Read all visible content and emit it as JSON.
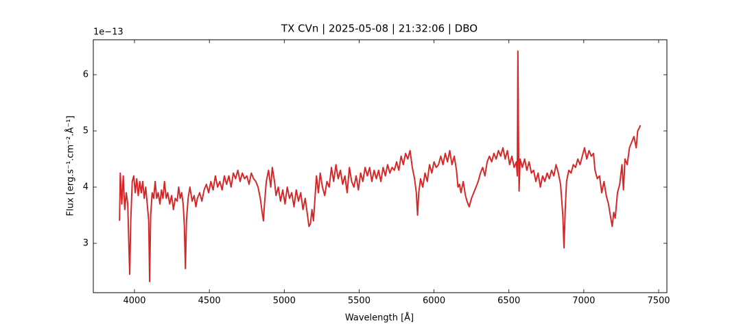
{
  "chart_data": {
    "type": "line",
    "title": "TX CVn | 2025-05-08 | 21:32:06 | DBO",
    "xlabel": "Wavelength [Å]",
    "ylabel": "Flux [erg.s⁻¹.cm⁻².Å⁻¹]",
    "y_offset_label": "1e−13",
    "xlim": [
      3725,
      7555
    ],
    "ylim": [
      2.122,
      6.622
    ],
    "xticks": [
      4000,
      4500,
      5000,
      5500,
      6000,
      6500,
      7000,
      7500
    ],
    "yticks": [
      3,
      4,
      5,
      6
    ],
    "series": [
      {
        "name": "TX CVn",
        "color": "#d62728",
        "x": [
          3900,
          3905,
          3915,
          3925,
          3935,
          3945,
          3955,
          3962,
          3968,
          3975,
          3985,
          3995,
          4005,
          4015,
          4025,
          4035,
          4045,
          4055,
          4065,
          4075,
          4085,
          4095,
          4101,
          4108,
          4118,
          4128,
          4138,
          4148,
          4158,
          4170,
          4180,
          4190,
          4200,
          4212,
          4222,
          4235,
          4248,
          4260,
          4272,
          4285,
          4295,
          4305,
          4315,
          4325,
          4333,
          4340,
          4347,
          4358,
          4370,
          4385,
          4398,
          4410,
          4420,
          4435,
          4450,
          4465,
          4480,
          4495,
          4510,
          4525,
          4540,
          4555,
          4570,
          4585,
          4600,
          4615,
          4630,
          4645,
          4660,
          4675,
          4690,
          4705,
          4720,
          4735,
          4750,
          4765,
          4780,
          4795,
          4810,
          4825,
          4840,
          4855,
          4861,
          4868,
          4880,
          4895,
          4910,
          4920,
          4935,
          4945,
          4960,
          4975,
          4990,
          5005,
          5020,
          5035,
          5050,
          5065,
          5080,
          5095,
          5110,
          5125,
          5140,
          5155,
          5165,
          5175,
          5185,
          5195,
          5205,
          5215,
          5228,
          5240,
          5255,
          5270,
          5285,
          5300,
          5315,
          5330,
          5345,
          5360,
          5375,
          5390,
          5405,
          5420,
          5435,
          5450,
          5465,
          5480,
          5495,
          5510,
          5525,
          5540,
          5555,
          5570,
          5585,
          5600,
          5615,
          5630,
          5645,
          5660,
          5675,
          5690,
          5705,
          5720,
          5735,
          5750,
          5765,
          5780,
          5795,
          5810,
          5825,
          5840,
          5855,
          5870,
          5882,
          5890,
          5898,
          5910,
          5925,
          5940,
          5955,
          5970,
          5985,
          6000,
          6015,
          6030,
          6045,
          6060,
          6075,
          6090,
          6105,
          6120,
          6135,
          6150,
          6160,
          6170,
          6180,
          6195,
          6210,
          6220,
          6235,
          6250,
          6265,
          6280,
          6295,
          6310,
          6325,
          6340,
          6355,
          6370,
          6385,
          6400,
          6415,
          6430,
          6445,
          6460,
          6475,
          6490,
          6505,
          6520,
          6535,
          6550,
          6556,
          6560,
          6565,
          6568,
          6575,
          6590,
          6605,
          6620,
          6635,
          6650,
          6665,
          6680,
          6695,
          6710,
          6725,
          6740,
          6755,
          6770,
          6785,
          6800,
          6815,
          6830,
          6845,
          6860,
          6868,
          6876,
          6885,
          6900,
          6915,
          6930,
          6945,
          6960,
          6975,
          6990,
          7005,
          7020,
          7035,
          7050,
          7065,
          7075,
          7090,
          7105,
          7120,
          7135,
          7150,
          7165,
          7180,
          7190,
          7200,
          7210,
          7225,
          7240,
          7255,
          7265,
          7275,
          7290,
          7305,
          7320,
          7335,
          7350,
          7360,
          7370,
          7378
        ],
        "values": [
          3.4,
          4.25,
          3.7,
          4.2,
          3.6,
          3.9,
          3.7,
          3.0,
          2.45,
          3.4,
          4.1,
          4.2,
          3.9,
          4.15,
          3.85,
          4.1,
          3.9,
          4.1,
          3.8,
          4.0,
          3.7,
          3.4,
          2.32,
          3.5,
          3.9,
          3.8,
          4.1,
          3.8,
          3.9,
          3.7,
          3.95,
          3.8,
          4.1,
          3.8,
          3.9,
          3.7,
          3.85,
          3.6,
          3.8,
          3.75,
          4.0,
          3.8,
          3.9,
          3.7,
          3.3,
          2.55,
          3.4,
          3.8,
          4.0,
          3.75,
          3.85,
          3.65,
          3.8,
          3.9,
          3.75,
          3.95,
          4.05,
          3.9,
          4.1,
          3.95,
          4.2,
          4.0,
          4.1,
          3.95,
          4.2,
          4.05,
          4.2,
          4.0,
          4.25,
          4.15,
          4.3,
          4.1,
          4.25,
          4.15,
          4.2,
          4.05,
          4.25,
          4.15,
          4.1,
          4.0,
          3.8,
          3.5,
          3.4,
          3.7,
          4.1,
          4.3,
          4.0,
          4.35,
          4.1,
          3.85,
          4.0,
          3.75,
          3.95,
          3.7,
          4.0,
          3.8,
          3.9,
          3.65,
          3.95,
          3.75,
          3.9,
          3.6,
          3.8,
          3.5,
          3.3,
          3.35,
          3.6,
          3.4,
          3.8,
          4.2,
          3.9,
          4.25,
          4.0,
          3.85,
          4.1,
          4.0,
          4.35,
          4.1,
          4.4,
          4.15,
          4.3,
          4.05,
          4.2,
          3.9,
          4.35,
          4.1,
          4.0,
          4.2,
          3.95,
          4.25,
          4.1,
          4.35,
          4.2,
          4.35,
          4.1,
          4.3,
          4.15,
          4.3,
          4.1,
          4.35,
          4.2,
          4.4,
          4.25,
          4.35,
          4.3,
          4.45,
          4.3,
          4.55,
          4.4,
          4.6,
          4.5,
          4.65,
          4.35,
          4.15,
          3.9,
          3.5,
          3.9,
          4.15,
          4.0,
          4.25,
          4.1,
          4.4,
          4.25,
          4.45,
          4.35,
          4.4,
          4.55,
          4.4,
          4.6,
          4.45,
          4.65,
          4.4,
          4.55,
          4.3,
          4.0,
          4.05,
          3.9,
          4.1,
          3.85,
          3.75,
          3.65,
          3.8,
          3.9,
          4.0,
          4.1,
          4.25,
          4.35,
          4.2,
          4.45,
          4.55,
          4.45,
          4.6,
          4.5,
          4.65,
          4.55,
          4.7,
          4.5,
          4.65,
          4.4,
          4.55,
          4.35,
          4.45,
          4.2,
          6.42,
          4.6,
          3.93,
          4.5,
          4.35,
          4.5,
          4.3,
          4.45,
          4.25,
          4.3,
          4.1,
          4.25,
          4.0,
          4.2,
          4.1,
          4.25,
          4.15,
          4.3,
          4.2,
          4.4,
          4.25,
          4.05,
          3.5,
          2.92,
          3.6,
          4.1,
          4.3,
          4.25,
          4.4,
          4.35,
          4.5,
          4.4,
          4.55,
          4.7,
          4.5,
          4.65,
          4.55,
          4.6,
          4.3,
          4.15,
          4.2,
          3.9,
          4.1,
          3.85,
          3.7,
          3.45,
          3.3,
          3.55,
          3.45,
          3.9,
          4.05,
          4.4,
          3.95,
          4.5,
          4.4,
          4.7,
          4.8,
          4.9,
          4.7,
          5.0,
          5.05,
          5.1
        ]
      }
    ]
  }
}
